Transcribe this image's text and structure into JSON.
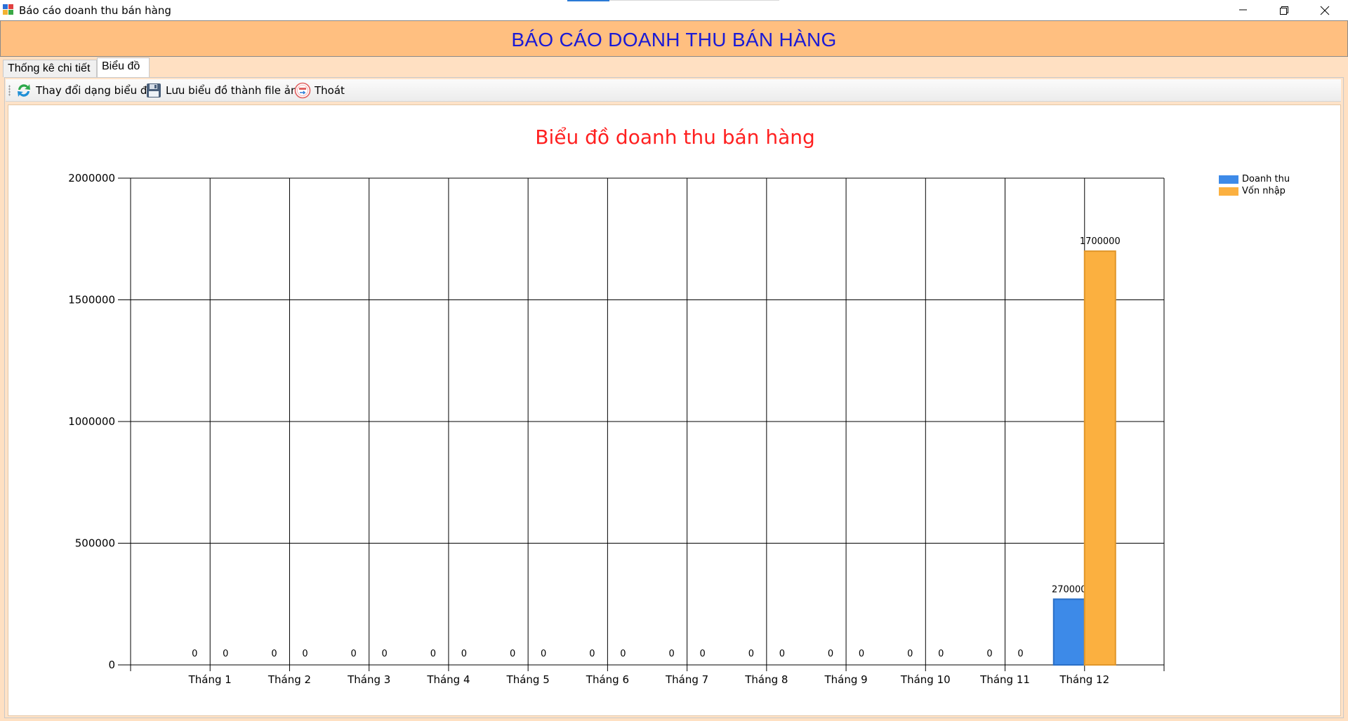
{
  "window": {
    "title": "Báo cáo doanh thu bán hàng",
    "icon": "report-app-icon"
  },
  "header": {
    "title": "BÁO CÁO DOANH THU BÁN HÀNG"
  },
  "tabs": [
    {
      "label": "Thống kê chi tiết",
      "active": false
    },
    {
      "label": "Biểu đồ",
      "active": true
    }
  ],
  "toolbar": {
    "change_chart_label": "Thay đổi dạng biểu đồ",
    "save_image_label": "Lưu biểu đồ thành file ảnh",
    "exit_label": "Thoát"
  },
  "colors": {
    "header_bg": "#ffbf80",
    "header_text": "#1a1ad6",
    "chart_title": "#ff2020",
    "series_revenue": "#3d8ae8",
    "series_cost": "#fbb040"
  },
  "chart_data": {
    "type": "bar",
    "title": "Biểu đồ doanh thu bán hàng",
    "xlabel": "",
    "ylabel": "",
    "ylim": [
      0,
      2000000
    ],
    "yticks": [
      0,
      500000,
      1000000,
      1500000,
      2000000
    ],
    "grid": true,
    "legend_position": "top-right",
    "categories": [
      "Tháng 1",
      "Tháng 2",
      "Tháng 3",
      "Tháng 4",
      "Tháng 5",
      "Tháng 6",
      "Tháng 7",
      "Tháng 8",
      "Tháng 9",
      "Tháng 10",
      "Tháng 11",
      "Tháng 12"
    ],
    "series": [
      {
        "name": "Doanh thu",
        "color": "#3d8ae8",
        "values": [
          0,
          0,
          0,
          0,
          0,
          0,
          0,
          0,
          0,
          0,
          0,
          270000
        ]
      },
      {
        "name": "Vốn nhập",
        "color": "#fbb040",
        "values": [
          0,
          0,
          0,
          0,
          0,
          0,
          0,
          0,
          0,
          0,
          0,
          1700000
        ]
      }
    ]
  }
}
